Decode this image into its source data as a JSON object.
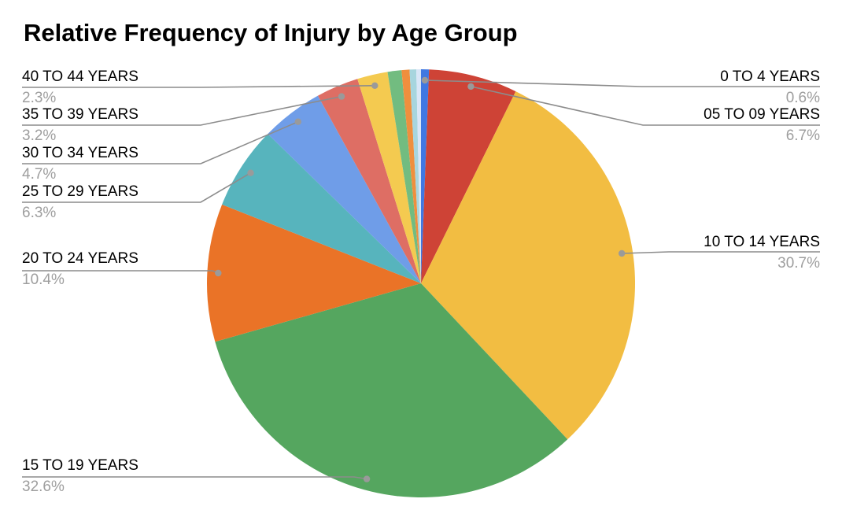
{
  "chart_data": {
    "type": "pie",
    "title": "Relative Frequency of Injury by Age Group",
    "legend_position": "none",
    "label_style": "callout-with-leader-lines",
    "background": "#ffffff",
    "text_colors": {
      "slice_label": "#000000",
      "percent_label": "#9E9E9E"
    },
    "line_color": "#8C8C8C",
    "dot_color": "#9A9A9A",
    "slices": [
      {
        "label": "0 TO 4 YEARS",
        "pct": 0.6,
        "pct_label": "0.6%",
        "color": "#4078E2"
      },
      {
        "label": "05 TO 09 YEARS",
        "pct": 6.7,
        "pct_label": "6.7%",
        "color": "#CE4336"
      },
      {
        "label": "10 TO 14 YEARS",
        "pct": 30.7,
        "pct_label": "30.7%",
        "color": "#F2BD42"
      },
      {
        "label": "15 TO 19 YEARS",
        "pct": 32.6,
        "pct_label": "32.6%",
        "color": "#55A65F"
      },
      {
        "label": "20 TO 24 YEARS",
        "pct": 10.4,
        "pct_label": "10.4%",
        "color": "#EA7327"
      },
      {
        "label": "25 TO 29 YEARS",
        "pct": 6.3,
        "pct_label": "6.3%",
        "color": "#57B4BD"
      },
      {
        "label": "30 TO 34 YEARS",
        "pct": 4.7,
        "pct_label": "4.7%",
        "color": "#6F9DE8"
      },
      {
        "label": "35 TO 39 YEARS",
        "pct": 3.2,
        "pct_label": "3.2%",
        "color": "#DE6E64"
      },
      {
        "label": "40 TO 44 YEARS",
        "pct": 2.3,
        "pct_label": "2.3%",
        "color": "#F4CA50"
      },
      {
        "label": "",
        "pct": 1.05,
        "pct_label": "",
        "color": "#72BC80"
      },
      {
        "label": "",
        "pct": 0.6,
        "pct_label": "",
        "color": "#EF8F3E"
      },
      {
        "label": "",
        "pct": 0.5,
        "pct_label": "",
        "color": "#A7D5DE"
      },
      {
        "label": "",
        "pct": 0.35,
        "pct_label": "",
        "color": "#D9E6F7"
      }
    ]
  }
}
